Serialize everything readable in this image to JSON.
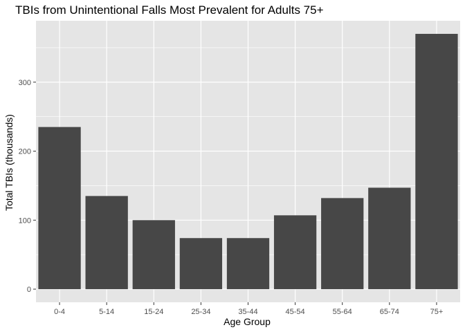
{
  "chart_data": {
    "type": "bar",
    "title": "TBIs from Unintentional Falls Most Prevalent for Adults 75+",
    "xlabel": "Age Group",
    "ylabel": "Total TBIs (thousands)",
    "categories": [
      "0-4",
      "5-14",
      "15-24",
      "25-34",
      "35-44",
      "45-54",
      "55-64",
      "65-74",
      "75+"
    ],
    "values": [
      235,
      135,
      100,
      74,
      74,
      107,
      132,
      147,
      370
    ],
    "ylim": [
      -19,
      389
    ],
    "yticks": [
      0,
      100,
      200,
      300
    ],
    "ytick_labels": [
      "0",
      "100",
      "200",
      "300"
    ],
    "grid": true,
    "legend": "none",
    "colors": {
      "panel": "#e5e5e5",
      "grid_major": "#ffffff",
      "bar": "#474747",
      "tick": "#333333"
    }
  }
}
